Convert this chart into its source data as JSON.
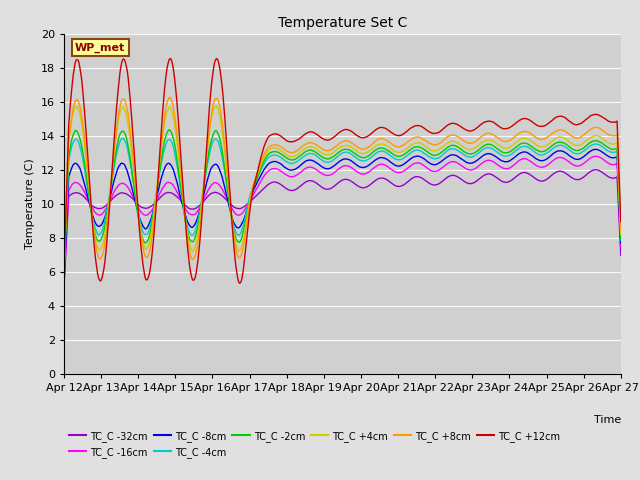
{
  "title": "Temperature Set C",
  "xlabel": "Time",
  "ylabel": "Temperature (C)",
  "ylim": [
    0,
    20
  ],
  "yticks": [
    0,
    2,
    4,
    6,
    8,
    10,
    12,
    14,
    16,
    18,
    20
  ],
  "fig_facecolor": "#e0e0e0",
  "axes_facecolor": "#d0d0d0",
  "annotation_text": "WP_met",
  "annotation_box_color": "#ffff99",
  "annotation_border_color": "#8b4513",
  "series": [
    {
      "label": "TC_C -32cm",
      "color": "#9900cc"
    },
    {
      "label": "TC_C -16cm",
      "color": "#ff00ff"
    },
    {
      "label": "TC_C -8cm",
      "color": "#0000ee"
    },
    {
      "label": "TC_C -4cm",
      "color": "#00cccc"
    },
    {
      "label": "TC_C -2cm",
      "color": "#00cc00"
    },
    {
      "label": "TC_C +4cm",
      "color": "#cccc00"
    },
    {
      "label": "TC_C +8cm",
      "color": "#ff9900"
    },
    {
      "label": "TC_C +12cm",
      "color": "#cc0000"
    }
  ],
  "xtick_labels": [
    "Apr 12",
    "Apr 13",
    "Apr 14",
    "Apr 15",
    "Apr 16",
    "Apr 17",
    "Apr 18",
    "Apr 19",
    "Apr 20",
    "Apr 21",
    "Apr 22",
    "Apr 23",
    "Apr 24",
    "Apr 25",
    "Apr 26",
    "Apr 27"
  ],
  "n_points": 600,
  "osc_days": 5.0,
  "total_days": 15.0
}
